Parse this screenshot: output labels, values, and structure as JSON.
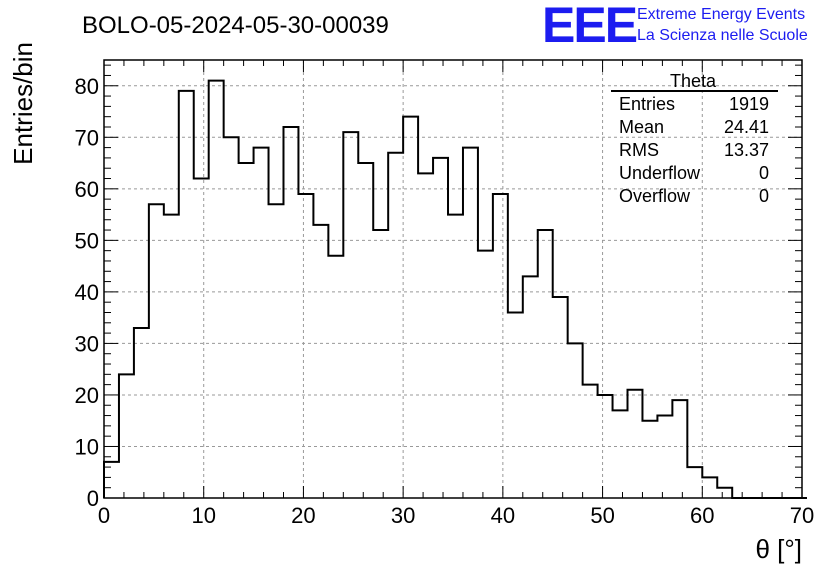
{
  "title": "BOLO-05-2024-05-30-00039",
  "logo": {
    "mark": "EEE",
    "line1": "Extreme Energy Events",
    "line2": "La Scienza nelle Scuole",
    "color": "#1c1cf0"
  },
  "stats": {
    "title": "Theta",
    "rows": [
      {
        "label": "Entries",
        "value": "1919"
      },
      {
        "label": "Mean",
        "value": "24.41"
      },
      {
        "label": "RMS",
        "value": "13.37"
      },
      {
        "label": "Underflow",
        "value": "0"
      },
      {
        "label": "Overflow",
        "value": "0"
      }
    ]
  },
  "chart_data": {
    "type": "bar",
    "style": "step-histogram",
    "xlabel": "θ [°]",
    "ylabel": "Entries/bin",
    "xlim": [
      0,
      70
    ],
    "ylim": [
      0,
      85
    ],
    "grid": true,
    "x_ticks": [
      0,
      10,
      20,
      30,
      40,
      50,
      60,
      70
    ],
    "y_ticks": [
      0,
      10,
      20,
      30,
      40,
      50,
      60,
      70,
      80
    ],
    "bin_width": 1.5,
    "bin_edges_start": 0,
    "values": [
      7,
      24,
      33,
      57,
      55,
      79,
      62,
      81,
      70,
      65,
      68,
      57,
      72,
      59,
      53,
      47,
      71,
      65,
      52,
      67,
      74,
      63,
      66,
      55,
      68,
      48,
      59,
      36,
      43,
      52,
      39,
      30,
      22,
      20,
      17,
      21,
      15,
      16,
      19,
      6,
      4,
      2,
      0,
      0,
      0,
      0,
      0
    ]
  }
}
